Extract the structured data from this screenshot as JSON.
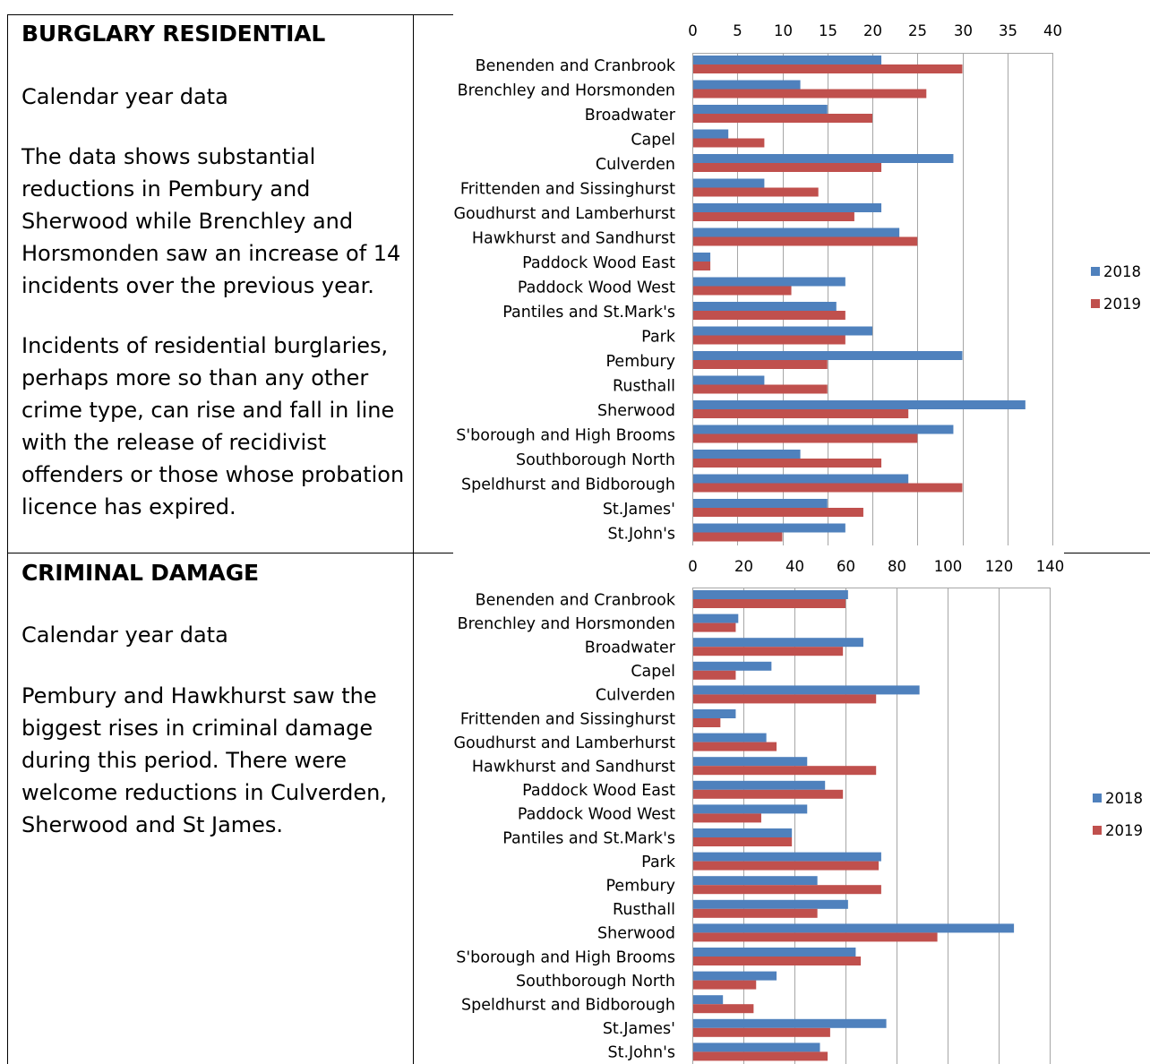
{
  "sections": [
    {
      "heading": "BURGLARY RESIDENTIAL",
      "subheading": "Calendar year data",
      "paragraphs": [
        "The data shows substantial reductions in Pembury and Sherwood while Brenchley and Horsmonden saw an increase of 14 incidents over the previous year.",
        "Incidents of residential burglaries, perhaps more so than any other crime type, can rise and fall in line with the release of recidivist offenders or those whose probation licence has expired."
      ]
    },
    {
      "heading": "CRIMINAL DAMAGE",
      "subheading": "Calendar year data",
      "paragraphs": [
        "Pembury and Hawkhurst saw the biggest rises in criminal damage during this period. There were welcome reductions in Culverden, Sherwood and St James."
      ]
    }
  ],
  "colors": {
    "s2018": "#4f81bd",
    "s2019": "#c0504d",
    "grid": "#a6a6a6"
  },
  "chart_data": [
    {
      "type": "bar",
      "orientation": "horizontal",
      "title": "",
      "xlim": [
        0,
        40
      ],
      "ticks": [
        0,
        5,
        10,
        15,
        20,
        25,
        30,
        35,
        40
      ],
      "tick_labels": [
        "0",
        "5",
        "10",
        "15",
        "20",
        "25",
        "30",
        "35",
        "40"
      ],
      "legend_position": "right",
      "categories": [
        "Benenden and Cranbrook",
        "Brenchley and Horsmonden",
        "Broadwater",
        "Capel",
        "Culverden",
        "Frittenden and Sissinghurst",
        "Goudhurst and Lamberhurst",
        "Hawkhurst and Sandhurst",
        "Paddock Wood East",
        "Paddock Wood West",
        "Pantiles and St.Mark's",
        "Park",
        "Pembury",
        "Rusthall",
        "Sherwood",
        "S'borough and High Brooms",
        "Southborough North",
        "Speldhurst and Bidborough",
        "St.James'",
        "St.John's"
      ],
      "series": [
        {
          "name": "2018",
          "values": [
            21,
            12,
            15,
            4,
            29,
            8,
            21,
            23,
            2,
            17,
            16,
            20,
            30,
            8,
            37,
            29,
            12,
            24,
            15,
            17
          ]
        },
        {
          "name": "2019",
          "values": [
            30,
            26,
            20,
            8,
            21,
            14,
            18,
            25,
            2,
            11,
            17,
            17,
            15,
            15,
            24,
            25,
            21,
            30,
            19,
            10
          ]
        }
      ]
    },
    {
      "type": "bar",
      "orientation": "horizontal",
      "title": "",
      "xlim": [
        0,
        140
      ],
      "ticks": [
        0,
        20,
        40,
        60,
        80,
        100,
        120,
        140
      ],
      "tick_labels": [
        "0",
        "20",
        "40",
        "60",
        "80",
        "100",
        "120",
        "140"
      ],
      "legend_position": "right",
      "categories": [
        "Benenden and Cranbrook",
        "Brenchley and Horsmonden",
        "Broadwater",
        "Capel",
        "Culverden",
        "Frittenden and Sissinghurst",
        "Goudhurst and Lamberhurst",
        "Hawkhurst and Sandhurst",
        "Paddock Wood East",
        "Paddock Wood West",
        "Pantiles and St.Mark's",
        "Park",
        "Pembury",
        "Rusthall",
        "Sherwood",
        "S'borough and High Brooms",
        "Southborough North",
        "Speldhurst and Bidborough",
        "St.James'",
        "St.John's"
      ],
      "series": [
        {
          "name": "2018",
          "values": [
            61,
            18,
            67,
            31,
            89,
            17,
            29,
            45,
            52,
            45,
            39,
            74,
            49,
            61,
            126,
            64,
            33,
            12,
            76,
            50
          ]
        },
        {
          "name": "2019",
          "values": [
            60,
            17,
            59,
            17,
            72,
            11,
            33,
            72,
            59,
            27,
            39,
            73,
            74,
            49,
            96,
            66,
            25,
            24,
            54,
            53
          ]
        }
      ]
    }
  ]
}
